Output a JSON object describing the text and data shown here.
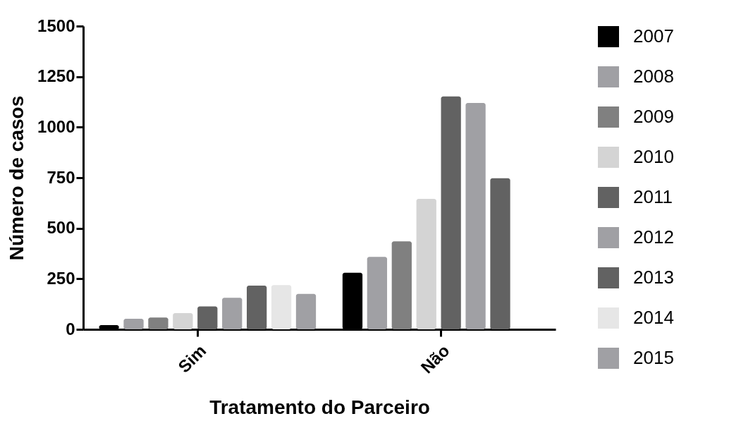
{
  "chart_data": {
    "type": "bar",
    "xlabel": "Tratamento do Parceiro",
    "ylabel": "Número de casos",
    "categories": [
      "Sim",
      "Não"
    ],
    "ylim": [
      0,
      1500
    ],
    "yticks": [
      0,
      250,
      500,
      750,
      1000,
      1250,
      1500
    ],
    "grid": false,
    "legend": "right",
    "series": [
      {
        "name": "2007",
        "color": "#000000",
        "values": [
          21,
          280
        ]
      },
      {
        "name": "2008",
        "color": "#a0a0a4",
        "values": [
          52,
          358
        ]
      },
      {
        "name": "2009",
        "color": "#808080",
        "values": [
          58,
          435
        ]
      },
      {
        "name": "2010",
        "color": "#d4d4d4",
        "values": [
          80,
          645
        ]
      },
      {
        "name": "2011",
        "color": "#626262",
        "values": [
          113,
          1152
        ]
      },
      {
        "name": "2012",
        "color": "#a0a0a4",
        "values": [
          156,
          1120
        ]
      },
      {
        "name": "2013",
        "color": "#626262",
        "values": [
          216,
          747
        ]
      },
      {
        "name": "2014",
        "color": "#e6e6e6",
        "values": [
          219,
          null
        ]
      },
      {
        "name": "2015",
        "color": "#a0a0a4",
        "values": [
          175,
          null
        ]
      }
    ]
  }
}
